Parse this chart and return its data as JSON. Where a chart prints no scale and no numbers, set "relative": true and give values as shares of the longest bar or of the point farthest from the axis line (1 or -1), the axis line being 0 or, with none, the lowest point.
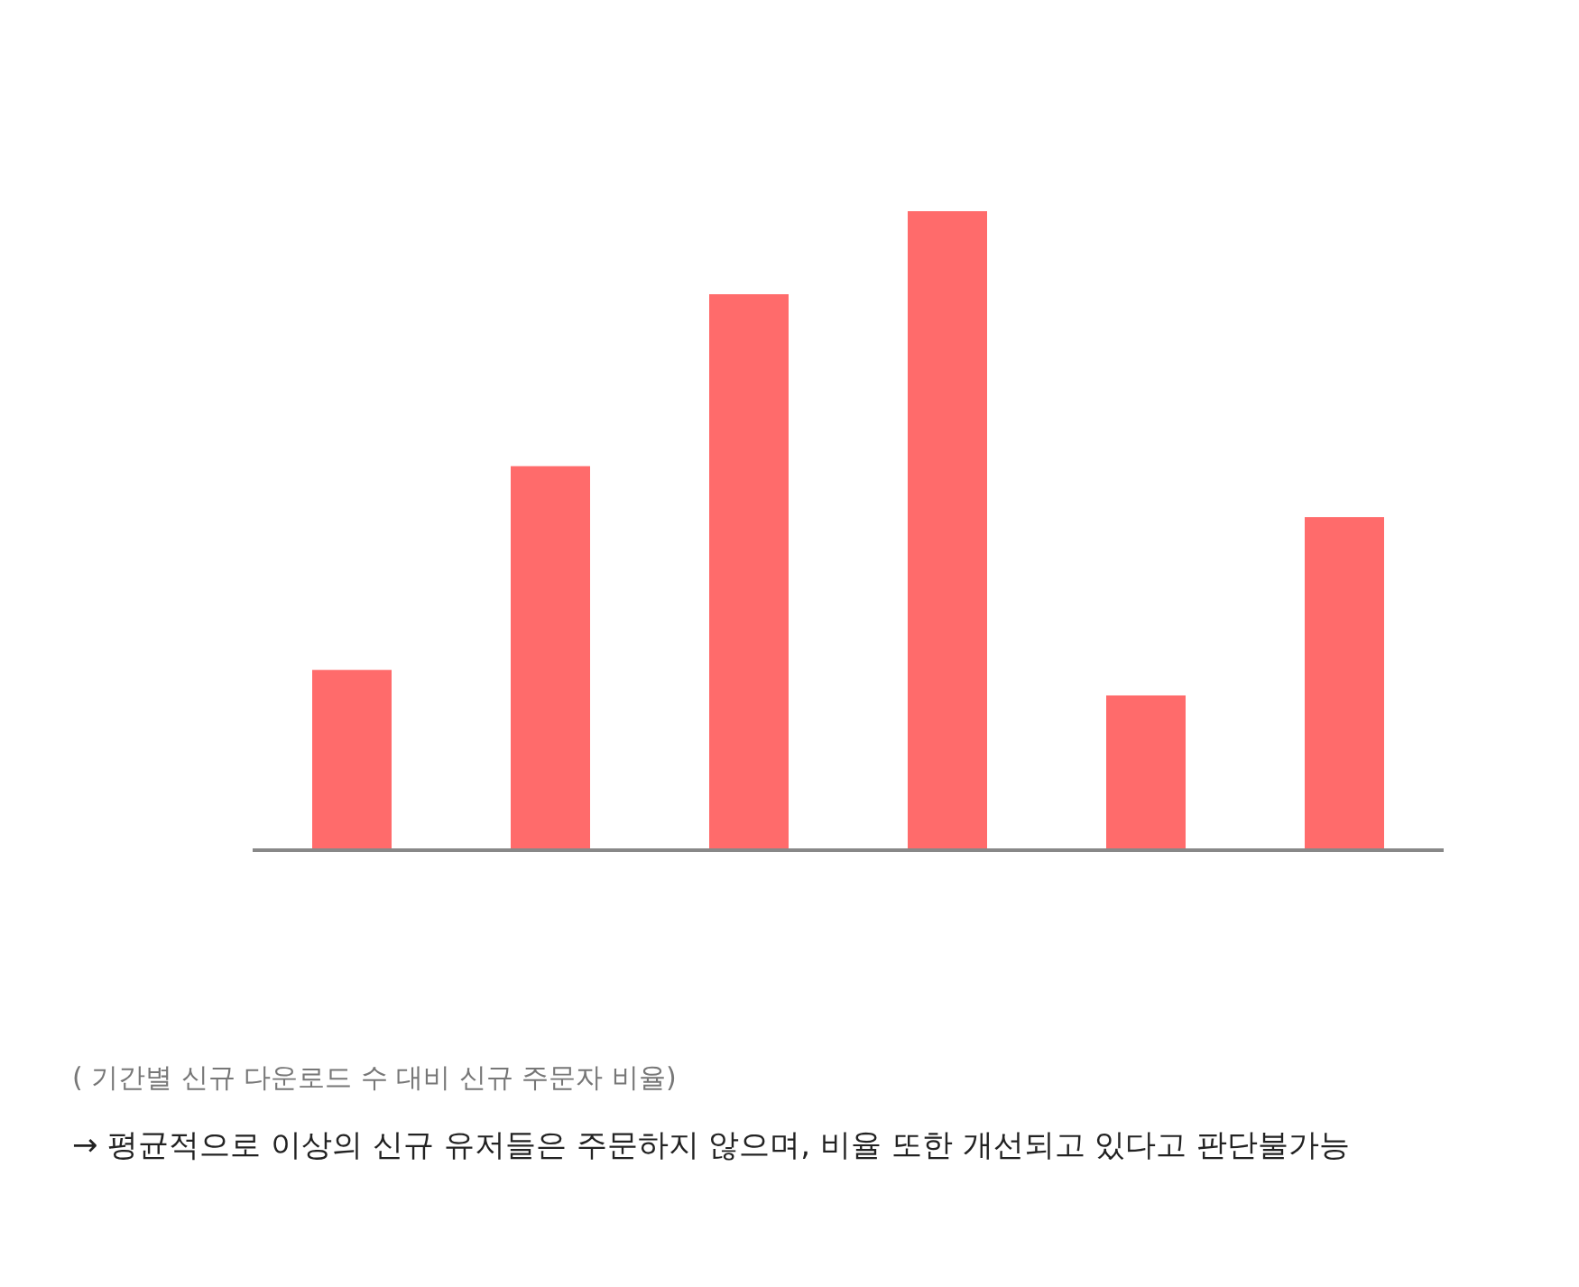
{
  "chart_data": {
    "type": "bar",
    "relative": true,
    "categories": [
      null,
      null,
      null,
      null,
      null,
      null
    ],
    "values": [
      0.28,
      0.6,
      0.87,
      1,
      0.24,
      0.52
    ],
    "color": "#ff6b6b",
    "annotations": [
      "( 기간별 신규 다운로드 수 대비 신규 주문자 비율)",
      "→ 평균적으로 이상의 신규 유저들은 주문하지 않으며, 비율 또한 개선되고 있다고 판단불가능"
    ]
  }
}
